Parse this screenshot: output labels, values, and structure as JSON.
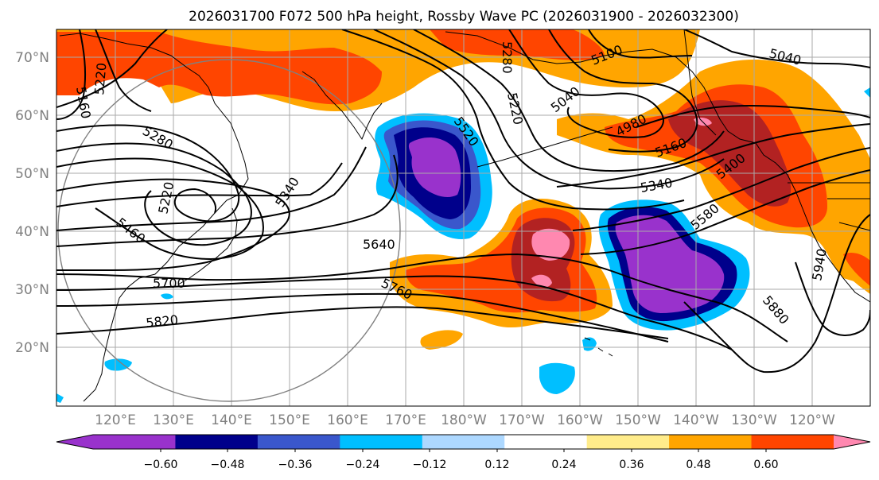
{
  "title": "2026031700 F072 500 hPa height, Rossby Wave PC (2026031900 - 2026032300)",
  "latitude_labels": [
    "70°N",
    "60°N",
    "50°N",
    "40°N",
    "30°N",
    "20°N"
  ],
  "longitude_labels": [
    "120°E",
    "130°E",
    "140°E",
    "150°E",
    "160°E",
    "170°E",
    "180°W",
    "170°W",
    "160°W",
    "150°W",
    "140°W",
    "130°W",
    "120°W"
  ],
  "colorbar": {
    "ticks": [
      "−0.60",
      "−0.48",
      "−0.36",
      "−0.24",
      "−0.12",
      "0.12",
      "0.24",
      "0.36",
      "0.48",
      "0.60"
    ],
    "colors": [
      "#9932cc",
      "#00008b",
      "#3a57cc",
      "#00bfff",
      "#add8ff",
      "#ffffff",
      "#ffec8b",
      "#ffa500",
      "#ff4500",
      "#b22222",
      "#ff88b0"
    ]
  },
  "contour_labels": [
    "5160",
    "5220",
    "5280",
    "5220",
    "5460",
    "5700",
    "5820",
    "5340",
    "5640",
    "5760",
    "5520",
    "5280",
    "5220",
    "5040",
    "4980",
    "5100",
    "5040",
    "5160",
    "5340",
    "5400",
    "5580",
    "5880",
    "5940"
  ]
}
